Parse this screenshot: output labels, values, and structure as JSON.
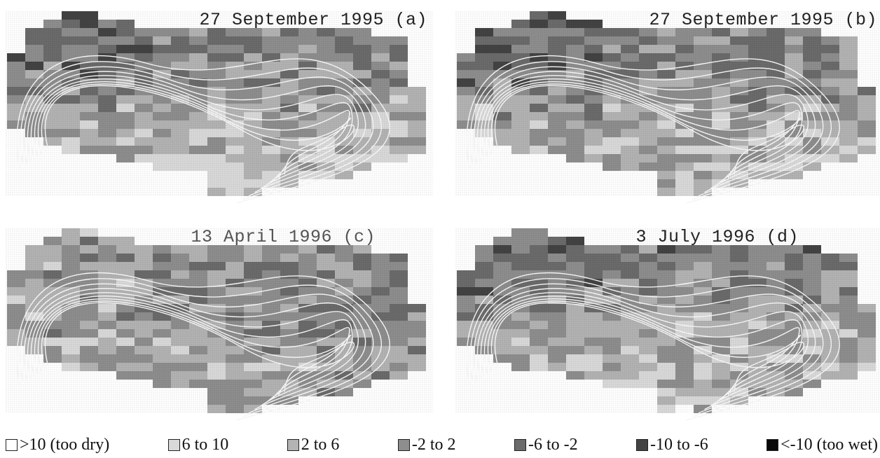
{
  "panels": [
    {
      "id": "a",
      "title": "27 September 1995 (a)"
    },
    {
      "id": "b",
      "title": "27 September 1995 (b)"
    },
    {
      "id": "c",
      "title": "13 April 1996 (c)"
    },
    {
      "id": "d",
      "title": "3 July 1996 (d)"
    }
  ],
  "legend": [
    {
      "label": ">10 (too dry)",
      "color": "#ffffff"
    },
    {
      "label": "6 to 10",
      "color": "#d9d9d9"
    },
    {
      "label": "2 to 6",
      "color": "#b3b3b3"
    },
    {
      "label": "-2 to 2",
      "color": "#8e8e8e"
    },
    {
      "label": "-6 to -2",
      "color": "#6b6b6b"
    },
    {
      "label": "-10 to -6",
      "color": "#434343"
    },
    {
      "label": "<-10 (too wet)",
      "color": "#080808"
    }
  ],
  "contour_color": "#f4f4f4"
}
